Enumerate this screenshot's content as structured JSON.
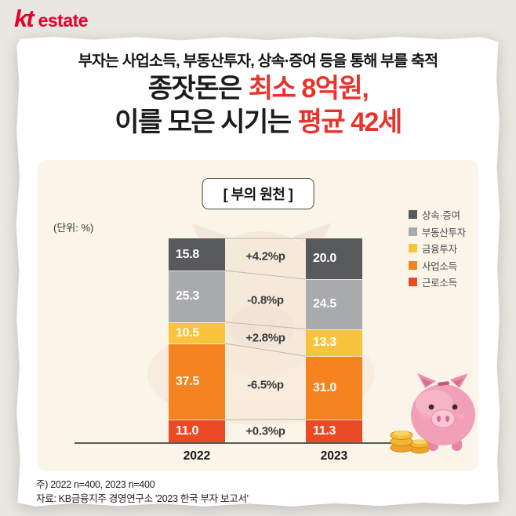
{
  "logo": {
    "kt": "kt",
    "estate": "estate",
    "color": "#e6002d"
  },
  "header": {
    "subtitle": "부자는 사업소득, 부동산투자, 상속·증여 등을 통해 부를 축적",
    "title": {
      "line1_black": "종잣돈은",
      "line1_red": "최소 8억원,",
      "line2_black": "이를 모은 시기는",
      "line2_red": "평균 42세",
      "red_color": "#e8332b"
    }
  },
  "chart_data": {
    "type": "bar",
    "variant": "stacked-column",
    "title": "[ 부의 원천 ]",
    "unit_label": "(단위: %)",
    "categories": [
      "2022",
      "2023"
    ],
    "series": [
      {
        "name": "상속·증여",
        "color": "#58595b",
        "values": [
          15.8,
          20.0
        ]
      },
      {
        "name": "부동산투자",
        "color": "#a9aaad",
        "values": [
          25.3,
          24.5
        ]
      },
      {
        "name": "금융투자",
        "color": "#f8c43c",
        "values": [
          10.5,
          13.3
        ]
      },
      {
        "name": "사업소득",
        "color": "#f5831f",
        "values": [
          37.5,
          31.0
        ]
      },
      {
        "name": "근로소득",
        "color": "#ea4a26",
        "values": [
          11.0,
          11.3
        ]
      }
    ],
    "deltas": [
      "+4.2%p",
      "-0.8%p",
      "+2.8%p",
      "-6.5%p",
      "+0.3%p"
    ],
    "legend_position": "top-right",
    "ylim": [
      0,
      100
    ],
    "grid": false
  },
  "footer": {
    "note1": "주) 2022 n=400, 2023 n=400",
    "note2": "자료: KB금융지주 경영연구소 '2023 한국 부자 보고서'"
  }
}
